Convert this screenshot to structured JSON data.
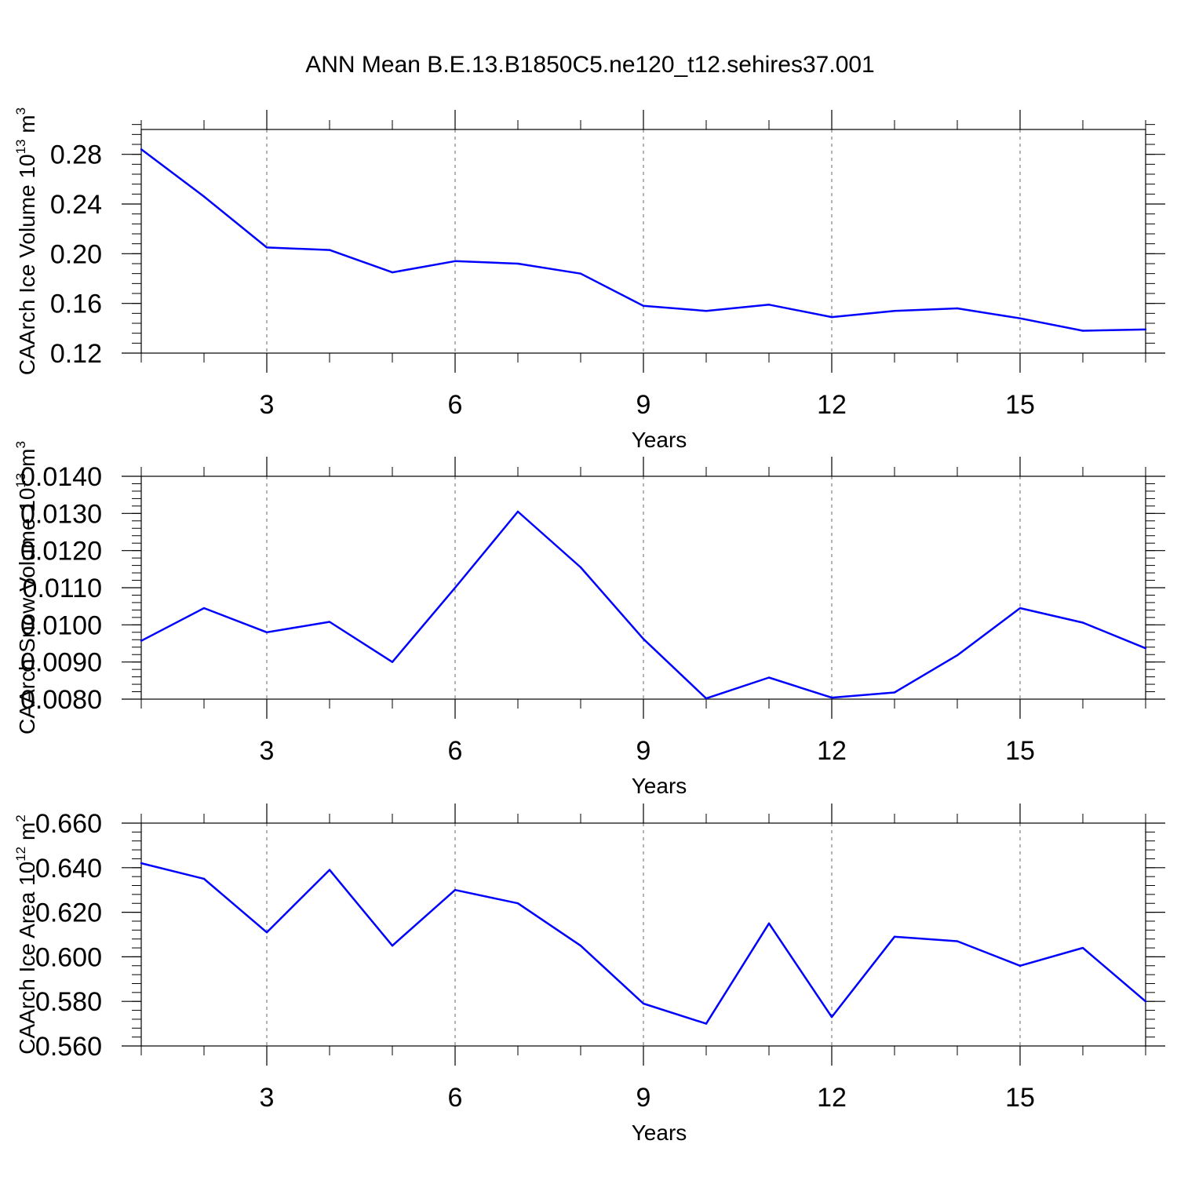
{
  "figure_title": "ANN Mean B.E.13.B1850C5.ne120_t12.sehires37.001",
  "colors": {
    "series": "#0000ff",
    "axis": "#000000",
    "grid": "#666666"
  },
  "chart_data": [
    {
      "type": "line",
      "title": "ANN Mean B.E.13.B1850C5.ne120_t12.sehires37.001",
      "xlabel": "Years",
      "ylabel": {
        "main": "CAArch Ice Volume 10",
        "exp": "13",
        "unit": "m",
        "unit_exp": "3"
      },
      "xlim": [
        1,
        17
      ],
      "ylim": [
        0.12,
        0.3
      ],
      "x_ticks": [
        3,
        6,
        9,
        12,
        15
      ],
      "x_tick_labels": [
        "3",
        "6",
        "9",
        "12",
        "15"
      ],
      "y_ticks": [
        0.12,
        0.16,
        0.2,
        0.24,
        0.28
      ],
      "y_tick_labels": [
        "0.12",
        "0.16",
        "0.20",
        "0.24",
        "0.28"
      ],
      "y_minor_step": 0.008,
      "grid": "vertical dashed at x ticks",
      "x": [
        1,
        2,
        3,
        4,
        5,
        6,
        7,
        8,
        9,
        10,
        11,
        12,
        13,
        14,
        15,
        16,
        17
      ],
      "values": [
        0.284,
        0.246,
        0.205,
        0.203,
        0.185,
        0.194,
        0.192,
        0.184,
        0.158,
        0.154,
        0.159,
        0.149,
        0.154,
        0.156,
        0.148,
        0.138,
        0.139
      ]
    },
    {
      "type": "line",
      "xlabel": "Years",
      "ylabel": {
        "main": "CAArch Snow Volume 10",
        "exp": "13",
        "unit": "m",
        "unit_exp": "3"
      },
      "xlim": [
        1,
        17
      ],
      "ylim": [
        0.008,
        0.014
      ],
      "x_ticks": [
        3,
        6,
        9,
        12,
        15
      ],
      "x_tick_labels": [
        "3",
        "6",
        "9",
        "12",
        "15"
      ],
      "y_ticks": [
        0.008,
        0.009,
        0.01,
        0.011,
        0.012,
        0.013,
        0.014
      ],
      "y_tick_labels": [
        "0.0080",
        "0.0090",
        "0.0100",
        "0.0110",
        "0.0120",
        "0.0130",
        "0.0140"
      ],
      "y_minor_step": 0.0002,
      "grid": "vertical dashed at x ticks",
      "x": [
        1,
        2,
        3,
        4,
        5,
        6,
        7,
        8,
        9,
        10,
        11,
        12,
        13,
        14,
        15,
        16,
        17
      ],
      "values": [
        0.00957,
        0.01045,
        0.0098,
        0.01008,
        0.009,
        0.011,
        0.01305,
        0.01155,
        0.00962,
        0.00802,
        0.00858,
        0.00804,
        0.00818,
        0.00918,
        0.01045,
        0.01006,
        0.00937
      ]
    },
    {
      "type": "line",
      "xlabel": "Years",
      "ylabel": {
        "main": "CAArch Ice Area 10",
        "exp": "12",
        "unit": "m",
        "unit_exp": "2"
      },
      "xlim": [
        1,
        17
      ],
      "ylim": [
        0.56,
        0.66
      ],
      "x_ticks": [
        3,
        6,
        9,
        12,
        15
      ],
      "x_tick_labels": [
        "3",
        "6",
        "9",
        "12",
        "15"
      ],
      "y_ticks": [
        0.56,
        0.58,
        0.6,
        0.62,
        0.64,
        0.66
      ],
      "y_tick_labels": [
        "0.560",
        "0.580",
        "0.600",
        "0.620",
        "0.640",
        "0.660"
      ],
      "y_minor_step": 0.004,
      "grid": "vertical dashed at x ticks",
      "x": [
        1,
        2,
        3,
        4,
        5,
        6,
        7,
        8,
        9,
        10,
        11,
        12,
        13,
        14,
        15,
        16,
        17
      ],
      "values": [
        0.642,
        0.635,
        0.611,
        0.639,
        0.605,
        0.63,
        0.624,
        0.605,
        0.579,
        0.57,
        0.615,
        0.573,
        0.609,
        0.607,
        0.596,
        0.604,
        0.58
      ]
    }
  ]
}
